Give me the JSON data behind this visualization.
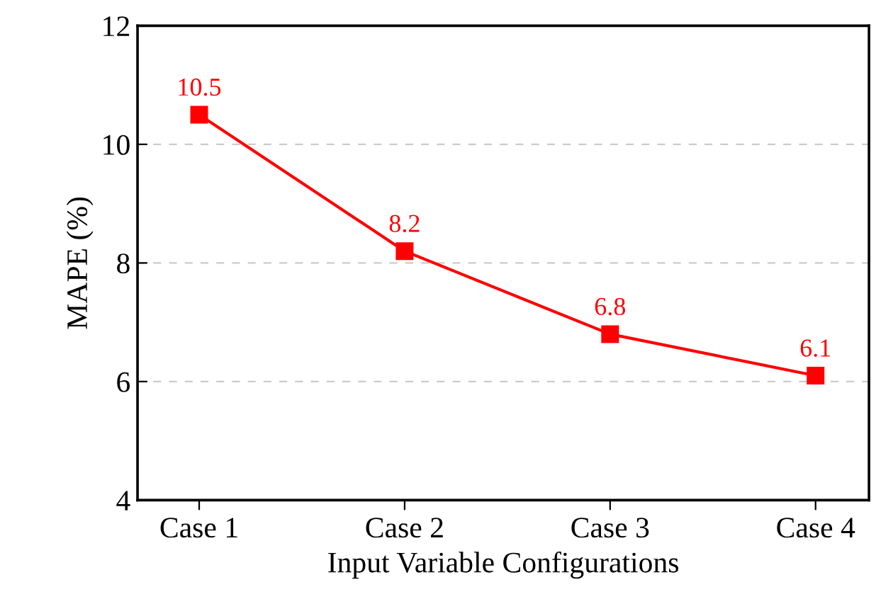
{
  "chart_data": {
    "type": "line",
    "xlabel": "Input Variable Configurations",
    "ylabel": "MAPE (%)",
    "categories": [
      "Case 1",
      "Case 2",
      "Case 3",
      "Case 4"
    ],
    "series": [
      {
        "color": "#ff0000",
        "values": [
          10.5,
          8.2,
          6.8,
          6.1
        ]
      }
    ],
    "ylim": [
      4,
      12
    ],
    "yticks": [
      4,
      6,
      8,
      10,
      12
    ],
    "grid": "y",
    "marker": "square",
    "line_style": "solid",
    "data_labels": true
  }
}
